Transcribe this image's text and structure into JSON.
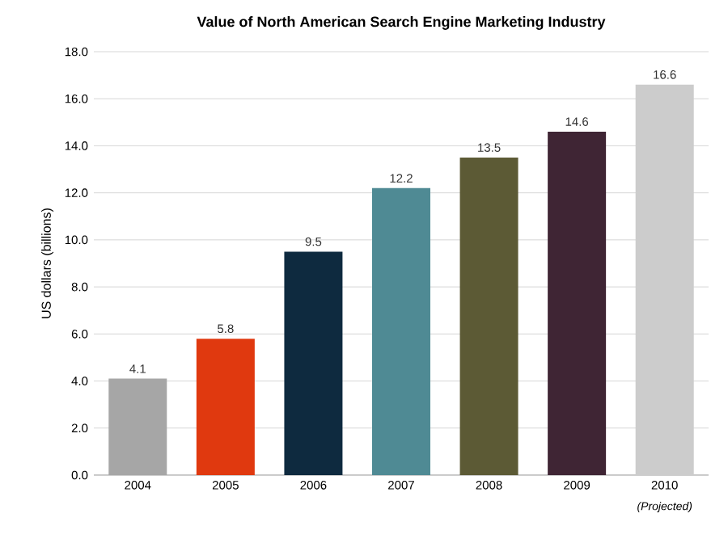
{
  "chart_data": {
    "type": "bar",
    "title": "Value of North American Search Engine Marketing Industry",
    "ylabel": "US dollars (billions)",
    "categories": [
      "2004",
      "2005",
      "2006",
      "2007",
      "2008",
      "2009",
      "2010"
    ],
    "values": [
      4.1,
      5.8,
      9.5,
      12.2,
      13.5,
      14.6,
      16.6
    ],
    "colors": [
      "#a6a6a6",
      "#e0390f",
      "#0e2a3f",
      "#4f8a94",
      "#5c5a35",
      "#3f2534",
      "#cccccc"
    ],
    "ylim": [
      0,
      18
    ],
    "yticks": [
      {
        "value": 0,
        "label": "0.0"
      },
      {
        "value": 2,
        "label": "2.0"
      },
      {
        "value": 4,
        "label": "4.0"
      },
      {
        "value": 6,
        "label": "6.0"
      },
      {
        "value": 8,
        "label": "8.0"
      },
      {
        "value": 10,
        "label": "10.0"
      },
      {
        "value": 12,
        "label": "12.0"
      },
      {
        "value": 14,
        "label": "14.0"
      },
      {
        "value": 16,
        "label": "16.0"
      },
      {
        "value": 18,
        "label": "18.0"
      }
    ],
    "grid": "y",
    "data_labels": true,
    "annotations": [
      "(Projected)"
    ]
  }
}
